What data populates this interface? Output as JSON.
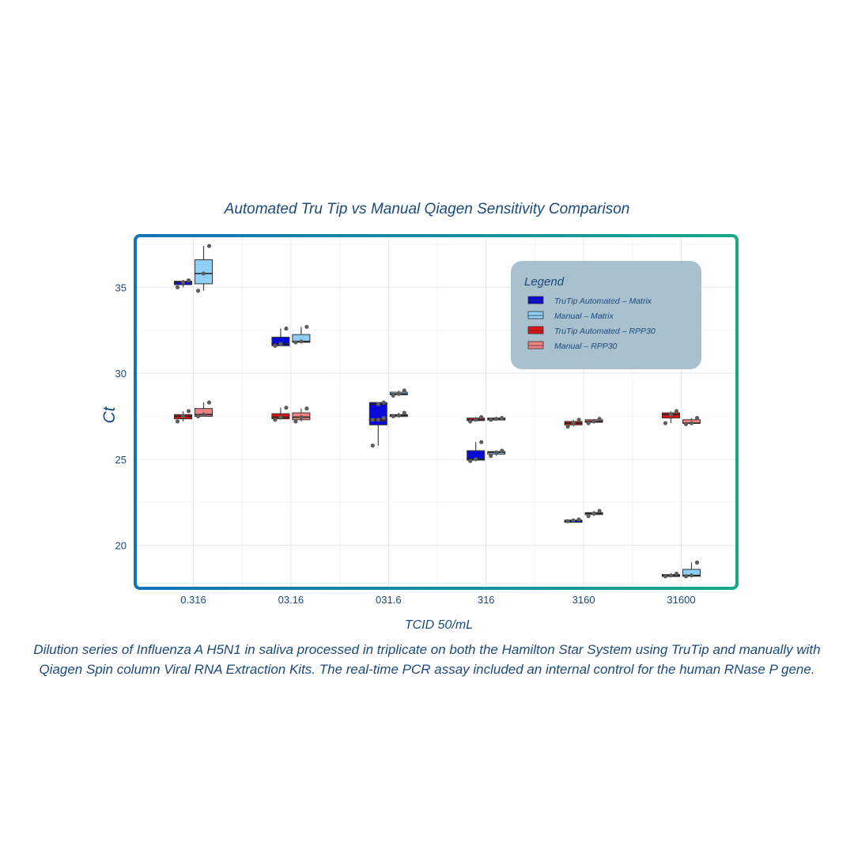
{
  "chart_data": {
    "type": "box",
    "title": "Automated Tru Tip vs Manual Qiagen Sensitivity Comparison",
    "xlabel": "TCID 50/mL",
    "ylabel": "Ct",
    "categories": [
      "0.316",
      "03.16",
      "031.6",
      "316",
      "3160",
      "31600"
    ],
    "y_ticks": [
      20,
      25,
      30,
      35
    ],
    "ylim": [
      17.5,
      38
    ],
    "grid": true,
    "legend": {
      "title": "Legend",
      "position": "top-right",
      "entries": [
        "TruTip Automated – Matrix",
        "Manual – Matrix",
        "TruTip Automated – RPP30",
        "Manual – RPP30"
      ]
    },
    "series": [
      {
        "name": "TruTip Automated – Matrix",
        "color": "#0a0ad8",
        "slot": 0,
        "boxes": [
          {
            "cat": 0,
            "min": 35.0,
            "q1": 35.15,
            "median": 35.3,
            "q3": 35.35,
            "max": 35.4,
            "points": [
              35.0,
              35.3,
              35.4
            ]
          },
          {
            "cat": 1,
            "min": 31.6,
            "q1": 31.6,
            "median": 31.7,
            "q3": 32.1,
            "max": 32.6,
            "points": [
              31.6,
              31.7,
              32.6
            ]
          },
          {
            "cat": 2,
            "min": 25.8,
            "q1": 27.0,
            "median": 28.2,
            "q3": 28.3,
            "max": 28.3,
            "points": [
              25.8,
              28.2,
              28.3
            ]
          },
          {
            "cat": 3,
            "min": 24.9,
            "q1": 24.95,
            "median": 25.0,
            "q3": 25.5,
            "max": 26.0,
            "points": [
              24.9,
              25.0,
              26.0
            ]
          },
          {
            "cat": 4,
            "min": 21.4,
            "q1": 21.4,
            "median": 21.45,
            "q3": 21.45,
            "max": 21.5,
            "points": [
              21.4,
              21.45,
              21.5
            ]
          },
          {
            "cat": 5,
            "min": 18.2,
            "q1": 18.2,
            "median": 18.25,
            "q3": 18.3,
            "max": 18.35,
            "points": [
              18.2,
              18.25,
              18.35
            ]
          }
        ]
      },
      {
        "name": "Manual – Matrix",
        "color": "#8fcff5",
        "slot": 1,
        "boxes": [
          {
            "cat": 0,
            "min": 34.8,
            "q1": 35.2,
            "median": 35.8,
            "q3": 36.6,
            "max": 37.4,
            "points": [
              34.8,
              35.8,
              37.4
            ]
          },
          {
            "cat": 1,
            "min": 31.8,
            "q1": 31.8,
            "median": 31.85,
            "q3": 32.25,
            "max": 32.7,
            "points": [
              31.8,
              31.85,
              32.7
            ]
          },
          {
            "cat": 2,
            "min": 28.7,
            "q1": 28.75,
            "median": 28.8,
            "q3": 28.9,
            "max": 29.0,
            "points": [
              28.7,
              28.8,
              29.0
            ]
          },
          {
            "cat": 3,
            "min": 25.2,
            "q1": 25.3,
            "median": 25.4,
            "q3": 25.45,
            "max": 25.5,
            "points": [
              25.2,
              25.4,
              25.5
            ]
          },
          {
            "cat": 4,
            "min": 21.7,
            "q1": 21.8,
            "median": 21.85,
            "q3": 21.9,
            "max": 22.0,
            "points": [
              21.7,
              21.85,
              22.0
            ]
          },
          {
            "cat": 5,
            "min": 18.2,
            "q1": 18.2,
            "median": 18.25,
            "q3": 18.6,
            "max": 19.0,
            "points": [
              18.2,
              18.25,
              19.0
            ]
          }
        ]
      },
      {
        "name": "TruTip Automated – RPP30",
        "color": "#e01414",
        "slot": 0,
        "boxes": [
          {
            "cat": 0,
            "min": 27.2,
            "q1": 27.35,
            "median": 27.5,
            "q3": 27.6,
            "max": 27.8,
            "points": [
              27.2,
              27.5,
              27.8
            ]
          },
          {
            "cat": 1,
            "min": 27.3,
            "q1": 27.35,
            "median": 27.45,
            "q3": 27.65,
            "max": 28.0,
            "points": [
              27.3,
              27.45,
              28.0
            ]
          },
          {
            "cat": 2,
            "min": 27.3,
            "q1": 27.3,
            "median": 27.3,
            "q3": 27.35,
            "max": 27.4,
            "points": [
              27.3,
              27.3,
              27.4
            ]
          },
          {
            "cat": 3,
            "min": 27.2,
            "q1": 27.25,
            "median": 27.3,
            "q3": 27.4,
            "max": 27.45,
            "points": [
              27.2,
              27.3,
              27.45
            ]
          },
          {
            "cat": 4,
            "min": 26.9,
            "q1": 27.0,
            "median": 27.1,
            "q3": 27.2,
            "max": 27.3,
            "points": [
              26.9,
              27.1,
              27.3
            ]
          },
          {
            "cat": 5,
            "min": 27.1,
            "q1": 27.4,
            "median": 27.6,
            "q3": 27.7,
            "max": 27.8,
            "points": [
              27.1,
              27.6,
              27.8
            ]
          }
        ]
      },
      {
        "name": "Manual – RPP30",
        "color": "#f28282",
        "slot": 1,
        "boxes": [
          {
            "cat": 0,
            "min": 27.5,
            "q1": 27.5,
            "median": 27.6,
            "q3": 27.95,
            "max": 28.3,
            "points": [
              27.5,
              27.6,
              28.3
            ]
          },
          {
            "cat": 1,
            "min": 27.2,
            "q1": 27.3,
            "median": 27.45,
            "q3": 27.7,
            "max": 27.95,
            "points": [
              27.2,
              27.45,
              27.95
            ]
          },
          {
            "cat": 2,
            "min": 27.5,
            "q1": 27.5,
            "median": 27.55,
            "q3": 27.6,
            "max": 27.7,
            "points": [
              27.5,
              27.55,
              27.7
            ]
          },
          {
            "cat": 3,
            "min": 27.3,
            "q1": 27.3,
            "median": 27.35,
            "q3": 27.4,
            "max": 27.4,
            "points": [
              27.3,
              27.35,
              27.4
            ]
          },
          {
            "cat": 4,
            "min": 27.1,
            "q1": 27.15,
            "median": 27.2,
            "q3": 27.3,
            "max": 27.35,
            "points": [
              27.1,
              27.2,
              27.35
            ]
          },
          {
            "cat": 5,
            "min": 27.05,
            "q1": 27.1,
            "median": 27.1,
            "q3": 27.3,
            "max": 27.4,
            "points": [
              27.05,
              27.1,
              27.4
            ]
          }
        ]
      }
    ]
  },
  "caption": "Dilution series of Influenza A H5N1 in saliva processed in triplicate on both the Hamilton Star System using TruTip and manually with Qiagen Spin column Viral RNA Extraction Kits. The real-time PCR assay included an internal control for the human RNase P gene.",
  "colors": {
    "frame_start": "#1273b8",
    "frame_end": "#17a88a",
    "legend_bg": "#a9c0cf",
    "text": "#1b4a7a"
  }
}
